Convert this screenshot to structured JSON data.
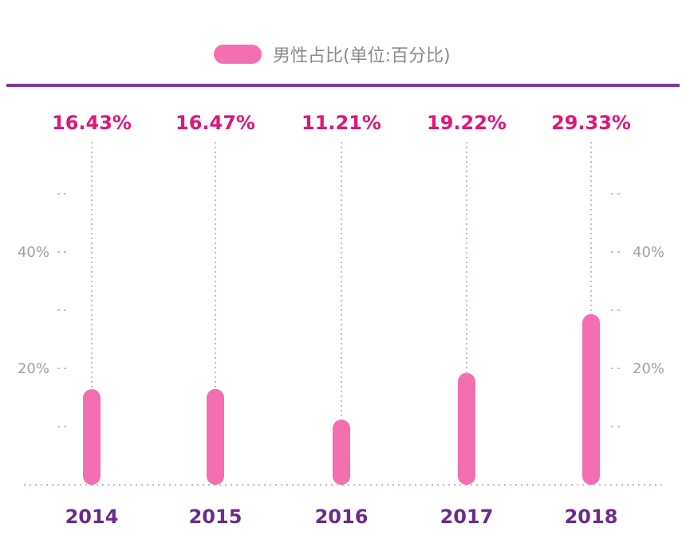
{
  "chart_data": {
    "type": "bar",
    "categories": [
      "2014",
      "2015",
      "2016",
      "2017",
      "2018"
    ],
    "series": [
      {
        "name": "男性占比(单位:百分比)",
        "values": [
          16.43,
          16.47,
          11.21,
          19.22,
          29.33
        ]
      }
    ],
    "value_labels": [
      "16.43%",
      "16.47%",
      "11.21%",
      "19.22%",
      "29.33%"
    ],
    "y_ticks": [
      "20%",
      "40%"
    ],
    "y_tick_values": [
      20,
      40
    ],
    "ylim": [
      0,
      50
    ],
    "legend_position": "top-center",
    "grid": false
  },
  "colors": {
    "bar": "#f36fb0",
    "value_label": "#e0157a",
    "year_label": "#6a2c8c",
    "top_rule": "#7b3a96",
    "guide": "#b0a0c0"
  }
}
